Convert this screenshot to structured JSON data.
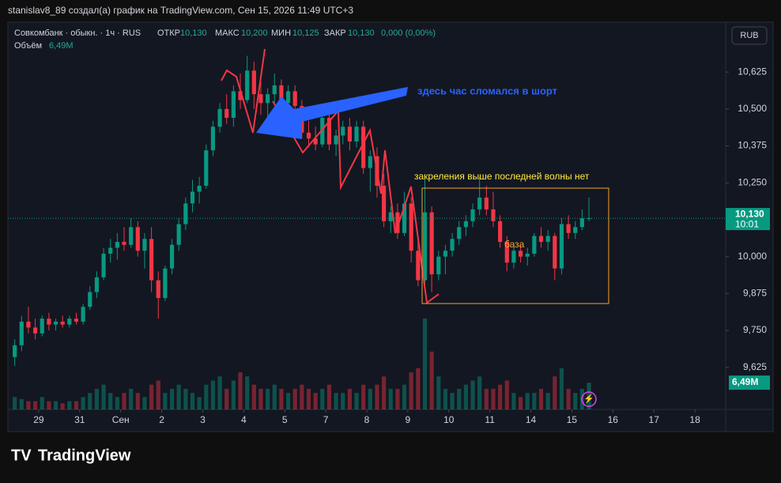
{
  "header": "stanislav8_89 создал(а) график на TradingView.com, Сен 15, 2026 11:49 UTC+3",
  "legend": {
    "symbol": "Совкомбанк · обыкн. · 1ч · RUS",
    "open_label": "ОТКР",
    "open": "10,130",
    "high_label": "МАКС",
    "high": "10,200",
    "low_label": "МИН",
    "low": "10,125",
    "close_label": "ЗАКР",
    "close": "10,130",
    "change": "0,000 (0,00%)",
    "volume_label": "Объём",
    "volume": "6,49M"
  },
  "currency": "RUB",
  "price_tag": {
    "price": "10,130",
    "time": "10:01"
  },
  "volume_tag": "6,49M",
  "annotations": {
    "blue": "здесь час сломался в шорт",
    "yellow": "закреления выше последней волны нет",
    "base": "база"
  },
  "logo": "TradingView",
  "chart_data": {
    "type": "candlestick",
    "up_color": "#089981",
    "down_color": "#f23645",
    "grid": false,
    "xlim": [
      -1,
      104
    ],
    "ylim": [
      9.4825,
      10.794
    ],
    "xticks": [
      {
        "value": 3.5,
        "label": "29"
      },
      {
        "value": 9.5,
        "label": "31"
      },
      {
        "value": 15.5,
        "label": "Сен"
      },
      {
        "value": 21.5,
        "label": "2"
      },
      {
        "value": 27.5,
        "label": "3"
      },
      {
        "value": 33.5,
        "label": "4"
      },
      {
        "value": 39.5,
        "label": "5"
      },
      {
        "value": 45.5,
        "label": "7"
      },
      {
        "value": 51.5,
        "label": "8"
      },
      {
        "value": 57.5,
        "label": "9"
      },
      {
        "value": 63.5,
        "label": "10"
      },
      {
        "value": 69.5,
        "label": "11"
      },
      {
        "value": 75.5,
        "label": "14"
      },
      {
        "value": 81.5,
        "label": "15"
      },
      {
        "value": 87.5,
        "label": "16"
      },
      {
        "value": 93.5,
        "label": "17"
      },
      {
        "value": 99.5,
        "label": "18"
      }
    ],
    "yticks": [
      {
        "value": 9.625,
        "label": "9,625"
      },
      {
        "value": 9.75,
        "label": "9,750"
      },
      {
        "value": 9.875,
        "label": "9,875"
      },
      {
        "value": 10,
        "label": "10,000"
      },
      {
        "value": 10.125,
        "label": "10,125"
      },
      {
        "value": 10.25,
        "label": "10,250"
      },
      {
        "value": 10.375,
        "label": "10,375"
      },
      {
        "value": 10.5,
        "label": "10,500"
      },
      {
        "value": 10.625,
        "label": "10,625"
      }
    ],
    "candles": [
      [
        9.66,
        9.72,
        9.63,
        9.7
      ],
      [
        9.7,
        9.8,
        9.68,
        9.78
      ],
      [
        9.78,
        9.83,
        9.74,
        9.76
      ],
      [
        9.76,
        9.79,
        9.72,
        9.74
      ],
      [
        9.74,
        9.8,
        9.73,
        9.79
      ],
      [
        9.79,
        9.81,
        9.75,
        9.77
      ],
      [
        9.77,
        9.79,
        9.75,
        9.78
      ],
      [
        9.78,
        9.8,
        9.76,
        9.77
      ],
      [
        9.77,
        9.8,
        9.76,
        9.79
      ],
      [
        9.79,
        9.81,
        9.77,
        9.78
      ],
      [
        9.78,
        9.84,
        9.77,
        9.83
      ],
      [
        9.83,
        9.9,
        9.82,
        9.88
      ],
      [
        9.88,
        9.95,
        9.86,
        9.93
      ],
      [
        9.93,
        10.03,
        9.92,
        10.01
      ],
      [
        10.01,
        10.06,
        9.98,
        10.03
      ],
      [
        10.03,
        10.08,
        9.99,
        10.05
      ],
      [
        10.05,
        10.1,
        10.02,
        10.04
      ],
      [
        10.04,
        10.13,
        10.03,
        10.1
      ],
      [
        10.1,
        10.12,
        10.0,
        10.02
      ],
      [
        10.02,
        10.08,
        9.96,
        10.06
      ],
      [
        10.06,
        10.1,
        9.88,
        9.92
      ],
      [
        9.92,
        9.95,
        9.79,
        9.86
      ],
      [
        9.86,
        9.97,
        9.85,
        9.96
      ],
      [
        9.96,
        10.06,
        9.94,
        10.04
      ],
      [
        10.04,
        10.13,
        10.02,
        10.11
      ],
      [
        10.11,
        10.2,
        10.09,
        10.18
      ],
      [
        10.18,
        10.26,
        10.15,
        10.22
      ],
      [
        10.22,
        10.27,
        10.18,
        10.24
      ],
      [
        10.24,
        10.38,
        10.23,
        10.36
      ],
      [
        10.36,
        10.46,
        10.34,
        10.44
      ],
      [
        10.44,
        10.52,
        10.42,
        10.5
      ],
      [
        10.5,
        10.55,
        10.45,
        10.47
      ],
      [
        10.47,
        10.58,
        10.44,
        10.56
      ],
      [
        10.56,
        10.62,
        10.5,
        10.53
      ],
      [
        10.53,
        10.68,
        10.52,
        10.63
      ],
      [
        10.63,
        10.66,
        10.5,
        10.55
      ],
      [
        10.55,
        10.6,
        10.48,
        10.52
      ],
      [
        10.52,
        10.57,
        10.46,
        10.55
      ],
      [
        10.55,
        10.62,
        10.52,
        10.58
      ],
      [
        10.58,
        10.6,
        10.5,
        10.52
      ],
      [
        10.52,
        10.58,
        10.48,
        10.56
      ],
      [
        10.56,
        10.58,
        10.5,
        10.51
      ],
      [
        10.51,
        10.53,
        10.4,
        10.42
      ],
      [
        10.42,
        10.46,
        10.37,
        10.4
      ],
      [
        10.4,
        10.44,
        10.36,
        10.38
      ],
      [
        10.38,
        10.5,
        10.37,
        10.47
      ],
      [
        10.47,
        10.49,
        10.36,
        10.38
      ],
      [
        10.38,
        10.43,
        10.34,
        10.41
      ],
      [
        10.41,
        10.46,
        10.38,
        10.44
      ],
      [
        10.44,
        10.47,
        10.36,
        10.39
      ],
      [
        10.39,
        10.46,
        10.37,
        10.44
      ],
      [
        10.44,
        10.46,
        10.28,
        10.3
      ],
      [
        10.3,
        10.36,
        10.22,
        10.34
      ],
      [
        10.34,
        10.37,
        10.2,
        10.24
      ],
      [
        10.24,
        10.28,
        10.1,
        10.12
      ],
      [
        10.12,
        10.17,
        10.08,
        10.15
      ],
      [
        10.15,
        10.18,
        10.06,
        10.08
      ],
      [
        10.08,
        10.22,
        10.07,
        10.18
      ],
      [
        10.18,
        10.2,
        9.98,
        10.02
      ],
      [
        10.02,
        10.06,
        9.9,
        9.92
      ],
      [
        9.92,
        10.28,
        9.9,
        10.15
      ],
      [
        10.15,
        10.17,
        9.88,
        9.94
      ],
      [
        9.94,
        10.02,
        9.92,
        10.0
      ],
      [
        10.0,
        10.04,
        9.94,
        10.02
      ],
      [
        10.02,
        10.08,
        10.0,
        10.06
      ],
      [
        10.06,
        10.12,
        10.04,
        10.1
      ],
      [
        10.1,
        10.14,
        10.07,
        10.12
      ],
      [
        10.12,
        10.18,
        10.1,
        10.16
      ],
      [
        10.16,
        10.27,
        10.14,
        10.2
      ],
      [
        10.2,
        10.24,
        10.14,
        10.16
      ],
      [
        10.16,
        10.22,
        10.1,
        10.12
      ],
      [
        10.12,
        10.14,
        10.03,
        10.05
      ],
      [
        10.05,
        10.07,
        9.95,
        9.98
      ],
      [
        9.98,
        10.04,
        9.96,
        10.02
      ],
      [
        10.02,
        10.04,
        9.98,
        10.0
      ],
      [
        10.0,
        10.03,
        9.97,
        10.01
      ],
      [
        10.01,
        10.08,
        10.0,
        10.07
      ],
      [
        10.07,
        10.1,
        10.03,
        10.05
      ],
      [
        10.05,
        10.09,
        10.02,
        10.07
      ],
      [
        10.07,
        10.08,
        9.92,
        9.96
      ],
      [
        9.96,
        10.13,
        9.94,
        10.11
      ],
      [
        10.11,
        10.14,
        10.06,
        10.08
      ],
      [
        10.08,
        10.12,
        10.06,
        10.1
      ],
      [
        10.1,
        10.16,
        10.09,
        10.13
      ],
      [
        10.13,
        10.2,
        10.12,
        10.13
      ]
    ],
    "volume": [
      3,
      2.5,
      2,
      2,
      3,
      2,
      2,
      1.5,
      2,
      2,
      3,
      4,
      5,
      6,
      4,
      3,
      4,
      5,
      4,
      3,
      6,
      7,
      4,
      5,
      6,
      5,
      4,
      3,
      6,
      7,
      8,
      5,
      7,
      9,
      8,
      6,
      5,
      5,
      6,
      5,
      4,
      5,
      6,
      5,
      4,
      5,
      6,
      4,
      4,
      5,
      4,
      6,
      5,
      6,
      8,
      5,
      5,
      6,
      9,
      10,
      22,
      14,
      8,
      5,
      4,
      5,
      6,
      7,
      8,
      5,
      5,
      6,
      7,
      4,
      3,
      4,
      4,
      5,
      4,
      8,
      10,
      5,
      4,
      5,
      6.49
    ]
  }
}
